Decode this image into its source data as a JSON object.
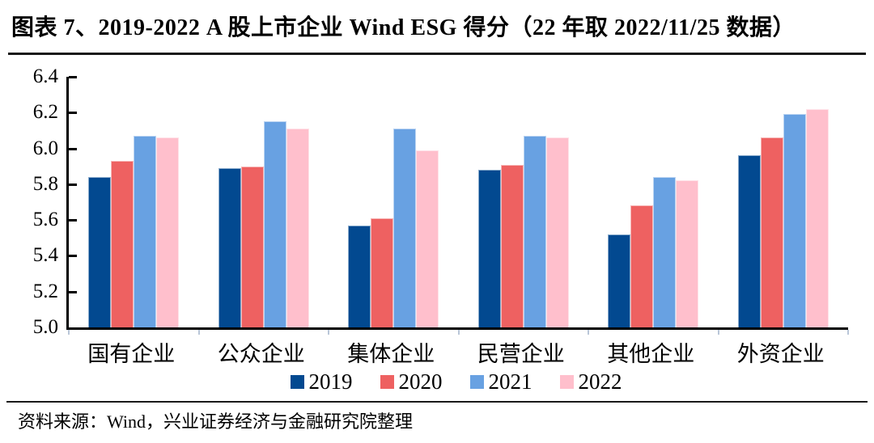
{
  "header": {
    "title": "图表 7、2019-2022 A 股上市企业 Wind ESG 得分（22 年取 2022/11/25 数据）"
  },
  "footer": {
    "source": "资料来源：Wind，兴业证券经济与金融研究院整理"
  },
  "chart_data": {
    "type": "bar",
    "title": "图表 7、2019-2022 A 股上市企业 Wind ESG 得分（22 年取 2022/11/25 数据）",
    "categories": [
      "国有企业",
      "公众企业",
      "集体企业",
      "民营企业",
      "其他企业",
      "外资企业"
    ],
    "series": [
      {
        "name": "2019",
        "color": "#024990",
        "values": [
          5.84,
          5.89,
          5.57,
          5.88,
          5.52,
          5.96
        ]
      },
      {
        "name": "2020",
        "color": "#EE6161",
        "values": [
          5.93,
          5.9,
          5.61,
          5.91,
          5.68,
          6.06
        ]
      },
      {
        "name": "2021",
        "color": "#68A1E2",
        "values": [
          6.07,
          6.15,
          6.11,
          6.07,
          5.84,
          6.19
        ]
      },
      {
        "name": "2022",
        "color": "#FFBFCC",
        "values": [
          6.06,
          6.11,
          5.99,
          6.06,
          5.82,
          6.22
        ]
      }
    ],
    "ylim": [
      5.0,
      6.4
    ],
    "yticks": [
      5.0,
      5.2,
      5.4,
      5.6,
      5.8,
      6.0,
      6.2,
      6.4
    ],
    "ylabel": "",
    "xlabel": "",
    "grid": false,
    "legend_position": "bottom"
  }
}
